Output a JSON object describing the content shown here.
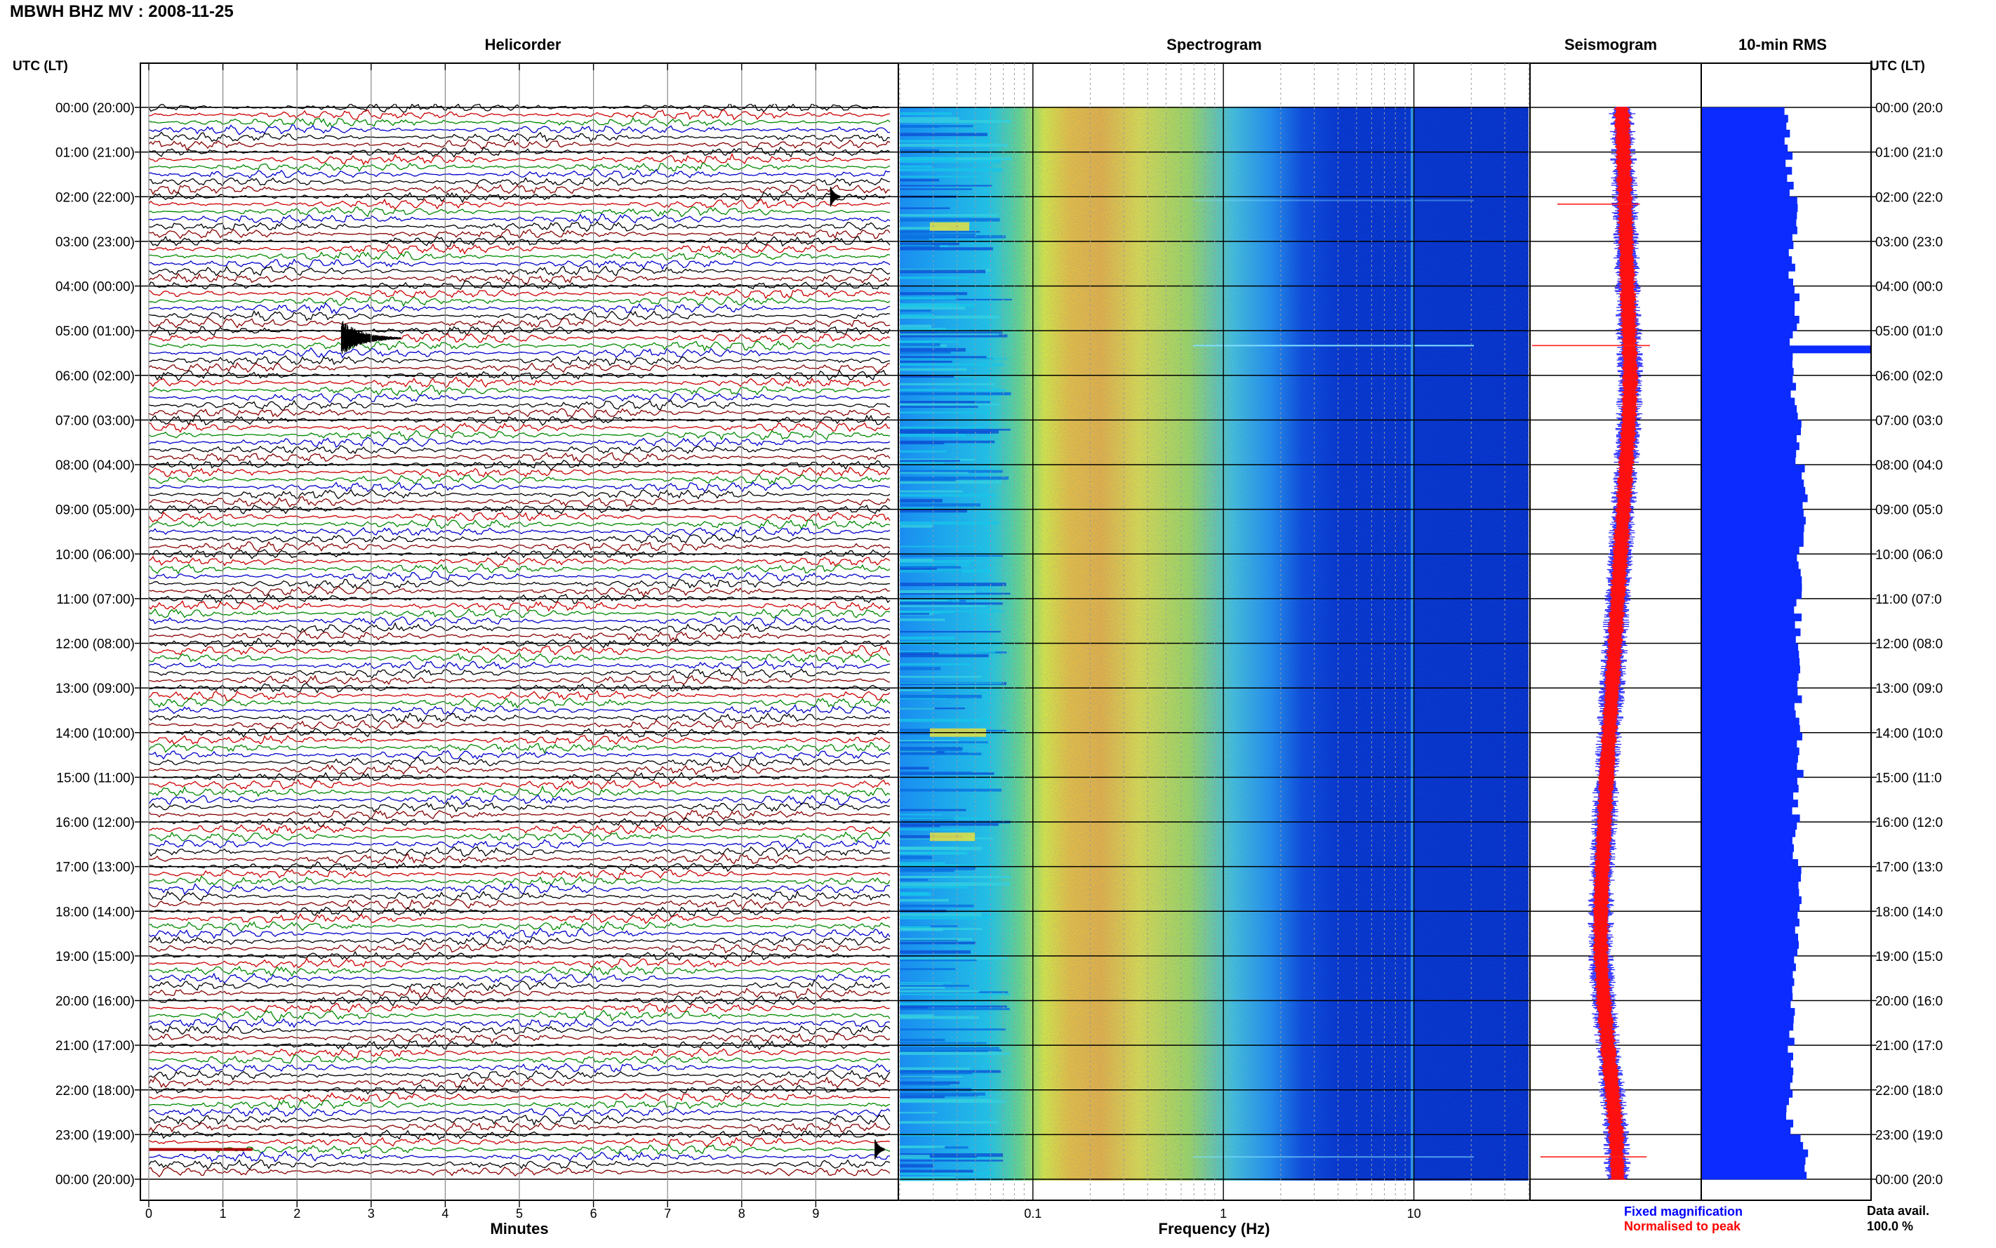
{
  "header": {
    "title": "MBWH BHZ MV : 2008-11-25"
  },
  "panels": {
    "helicorder": "Helicorder",
    "spectrogram": "Spectrogram",
    "seismogram": "Seismogram",
    "rms": "10-min RMS"
  },
  "axis": {
    "left_header": "UTC (LT)",
    "right_header": "UTC (LT)",
    "right_times": [
      "00:00 (20:0",
      "01:00 (21:0",
      "02:00 (22:0",
      "03:00 (23:0",
      "04:00 (00:0",
      "05:00 (01:0",
      "06:00 (02:0",
      "07:00 (03:0",
      "08:00 (04:0",
      "09:00 (05:0",
      "10:00 (06:0",
      "11:00 (07:0",
      "12:00 (08:0",
      "13:00 (09:0",
      "14:00 (10:0",
      "15:00 (11:0",
      "16:00 (12:0",
      "17:00 (13:0",
      "18:00 (14:0",
      "19:00 (15:0",
      "20:00 (16:0",
      "21:00 (17:0",
      "22:00 (18:0",
      "23:00 (19:0",
      "00:00 (20:0"
    ]
  },
  "footer": {
    "legend_fixed": "Fixed magnification",
    "legend_normalised": "Normalised to peak",
    "data_avail_label": "Data avail.",
    "data_avail_value": "100.0 %"
  },
  "chart_data": [
    {
      "type": "line",
      "title": "Helicorder",
      "xlabel": "Minutes",
      "ylabel": "UTC (LT)",
      "x_ticks": [
        "0",
        "1",
        "2",
        "3",
        "4",
        "5",
        "6",
        "7",
        "8",
        "9"
      ],
      "xlim": [
        0,
        10
      ],
      "y_tick_labels": [
        "00:00 (20:00)",
        "01:00 (21:00)",
        "02:00 (22:00)",
        "03:00 (23:00)",
        "04:00 (00:00)",
        "05:00 (01:00)",
        "06:00 (02:00)",
        "07:00 (03:00)",
        "08:00 (04:00)",
        "09:00 (05:00)",
        "10:00 (06:00)",
        "11:00 (07:00)",
        "12:00 (08:00)",
        "13:00 (09:00)",
        "14:00 (10:00)",
        "15:00 (11:00)",
        "16:00 (12:00)",
        "17:00 (13:00)",
        "18:00 (14:00)",
        "19:00 (15:00)",
        "20:00 (16:00)",
        "21:00 (17:00)",
        "22:00 (18:00)",
        "23:00 (19:00)",
        "00:00 (20:00)"
      ],
      "line_minutes": 10,
      "line_colors": [
        "#000000",
        "#cc0000",
        "#008800",
        "#0000cc",
        "#000000",
        "#880000"
      ],
      "events": [
        {
          "time": "02:00",
          "minute": 9.2,
          "amplitude": "small"
        },
        {
          "time": "05:10",
          "minute": 2.6,
          "amplitude": "large",
          "coda_minutes": 0.8
        },
        {
          "time": "23:20",
          "minute": 9.8,
          "amplitude": "small"
        }
      ]
    },
    {
      "type": "heatmap",
      "title": "Spectrogram",
      "xlabel": "Frequency (Hz)",
      "x_scale": "log",
      "xlim": [
        0.02,
        40
      ],
      "x_ticks": [
        "0.1",
        "1",
        "10"
      ],
      "colormap": [
        "#0000cc",
        "#0066ff",
        "#22bbee",
        "#ffee22",
        "#ff9900"
      ],
      "features": {
        "peak_band_hz": [
          0.15,
          0.35
        ],
        "narrow_line_hz": 11.5,
        "noise_falloff_hz": 4
      }
    },
    {
      "type": "line",
      "title": "Seismogram",
      "series": [
        {
          "name": "Fixed magnification",
          "color": "#0000ff"
        },
        {
          "name": "Normalised to peak",
          "color": "#ff0000"
        }
      ],
      "trace_offset_by_hour": [
        0.2,
        0.25,
        0.3,
        0.35,
        0.4,
        0.45,
        0.5,
        0.45,
        0.35,
        0.25,
        0.15,
        0.05,
        -0.05,
        -0.15,
        -0.25,
        -0.35,
        -0.42,
        -0.5,
        -0.55,
        -0.55,
        -0.45,
        -0.3,
        -0.15,
        0.0,
        0.05
      ],
      "spikes": [
        {
          "time": "02:10",
          "width": 0.7
        },
        {
          "time": "05:20",
          "width": 1.0
        },
        {
          "time": "23:30",
          "width": 0.9
        }
      ]
    },
    {
      "type": "bar",
      "title": "10-min RMS",
      "orientation": "horizontal",
      "color": "#0000ff",
      "bins_per_hour": 6,
      "hourly_rms": [
        0.5,
        0.52,
        0.55,
        0.53,
        0.56,
        0.54,
        0.55,
        0.57,
        0.61,
        0.6,
        0.58,
        0.57,
        0.56,
        0.57,
        0.58,
        0.56,
        0.55,
        0.57,
        0.57,
        0.56,
        0.54,
        0.53,
        0.52,
        0.6
      ],
      "peaks": [
        {
          "time": "05:20",
          "value": 1.0
        },
        {
          "time": "23:20",
          "value": 0.63
        }
      ],
      "xlim": [
        0,
        1.0
      ]
    }
  ]
}
